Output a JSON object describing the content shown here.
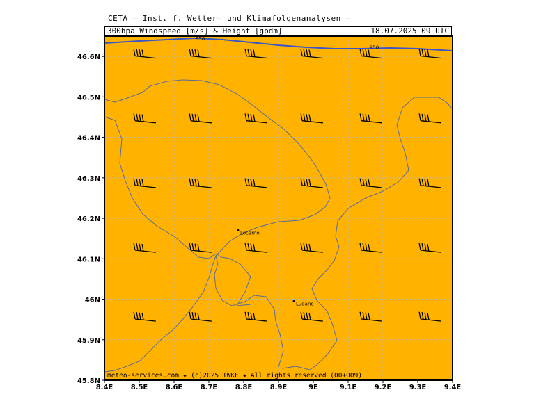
{
  "header": {
    "title": "CETA — Inst. f. Wetter— und Klimafolgenanalysen —",
    "subtitle": "300hpa_Windspeed_[m/s]_&_Height_[gpdm]",
    "datetime": "18.07.2025 09 UTC"
  },
  "colors": {
    "field": "#ffb300",
    "contour": "#3a55c8",
    "coast": "#5a6a9a",
    "grid": "#b9b9b9"
  },
  "axes": {
    "x_ticks": [
      "8.4E",
      "8.5E",
      "8.6E",
      "8.7E",
      "8.8E",
      "8.9E",
      "9E",
      "9.1E",
      "9.2E",
      "9.3E",
      "9.4E"
    ],
    "y_ticks": [
      "46.6N",
      "46.5N",
      "46.4N",
      "46.3N",
      "46.2N",
      "46.1N",
      "46N",
      "45.9N",
      "45.8N"
    ]
  },
  "map": {
    "extent": {
      "lon": [
        8.4,
        9.4
      ],
      "lat": [
        45.8,
        46.65
      ]
    },
    "contour_labels": [
      {
        "text": "950",
        "lon": 8.675,
        "lat": 46.64
      },
      {
        "text": "950",
        "lon": 9.175,
        "lat": 46.618
      }
    ],
    "cities": [
      {
        "name": "Locarno",
        "lon": 8.79,
        "lat": 46.17
      },
      {
        "name": "Lugano",
        "lon": 8.95,
        "lat": 45.995
      }
    ],
    "wind_barb_lons": [
      8.5,
      8.66,
      8.82,
      8.98,
      9.15,
      9.32
    ],
    "wind_barb_lats": [
      46.6,
      46.44,
      46.28,
      46.12,
      45.95
    ]
  },
  "footer": {
    "copyright": "meteo-services.com ★ (c)2025 IWKF ★ All rights reserved (00+009)"
  }
}
